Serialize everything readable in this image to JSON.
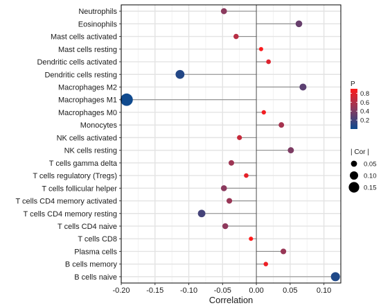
{
  "chart_data": {
    "type": "lollipop",
    "categories": [
      "Neutrophils",
      "Eosinophils",
      "Mast cells activated",
      "Mast cells resting",
      "Dendritic cells activated",
      "Dendritic cells resting",
      "Macrophages M2",
      "Macrophages M1",
      "Macrophages M0",
      "Monocytes",
      "NK cells activated",
      "NK cells resting",
      "T cells gamma delta",
      "T cells regulatory (Tregs)",
      "T cells follicular helper",
      "T cells CD4 memory activated",
      "T cells CD4 memory resting",
      "T cells CD4 naive",
      "T cells CD8",
      "Plasma cells",
      "B cells memory",
      "B cells naive"
    ],
    "correlation": [
      -0.048,
      0.063,
      -0.03,
      0.007,
      0.018,
      -0.113,
      0.069,
      -0.192,
      0.011,
      0.037,
      -0.025,
      0.051,
      -0.037,
      -0.015,
      -0.048,
      -0.04,
      -0.081,
      -0.046,
      -0.008,
      0.04,
      0.014,
      0.117
    ],
    "p_value": [
      0.45,
      0.32,
      0.62,
      0.88,
      0.77,
      0.08,
      0.28,
      0.01,
      0.85,
      0.55,
      0.68,
      0.4,
      0.52,
      0.8,
      0.45,
      0.5,
      0.2,
      0.46,
      0.9,
      0.5,
      0.83,
      0.06
    ],
    "xlabel": "Correlation",
    "xlim": [
      -0.2,
      0.125
    ],
    "xticks": [
      -0.2,
      -0.15,
      -0.1,
      -0.05,
      0.0,
      0.05,
      0.1
    ],
    "xtick_labels": [
      "-0.20",
      "-0.15",
      "-0.10",
      "-0.05",
      "0.00",
      "0.05",
      "0.10"
    ],
    "grid": true,
    "color_legend": {
      "title": "P",
      "ticks": [
        0.2,
        0.4,
        0.6,
        0.8
      ],
      "tick_labels": [
        "0.2",
        "0.4",
        "0.6",
        "0.8"
      ],
      "range": [
        0,
        0.9
      ],
      "low_color": "#0d4a8f",
      "mid_color": "#8b3a5e",
      "high_color": "#ff1a1a"
    },
    "size_legend": {
      "title": "| Cor |",
      "values": [
        0.05,
        0.1,
        0.15
      ],
      "labels": [
        "0.05",
        "0.10",
        "0.15"
      ]
    },
    "legend_position": "right"
  }
}
